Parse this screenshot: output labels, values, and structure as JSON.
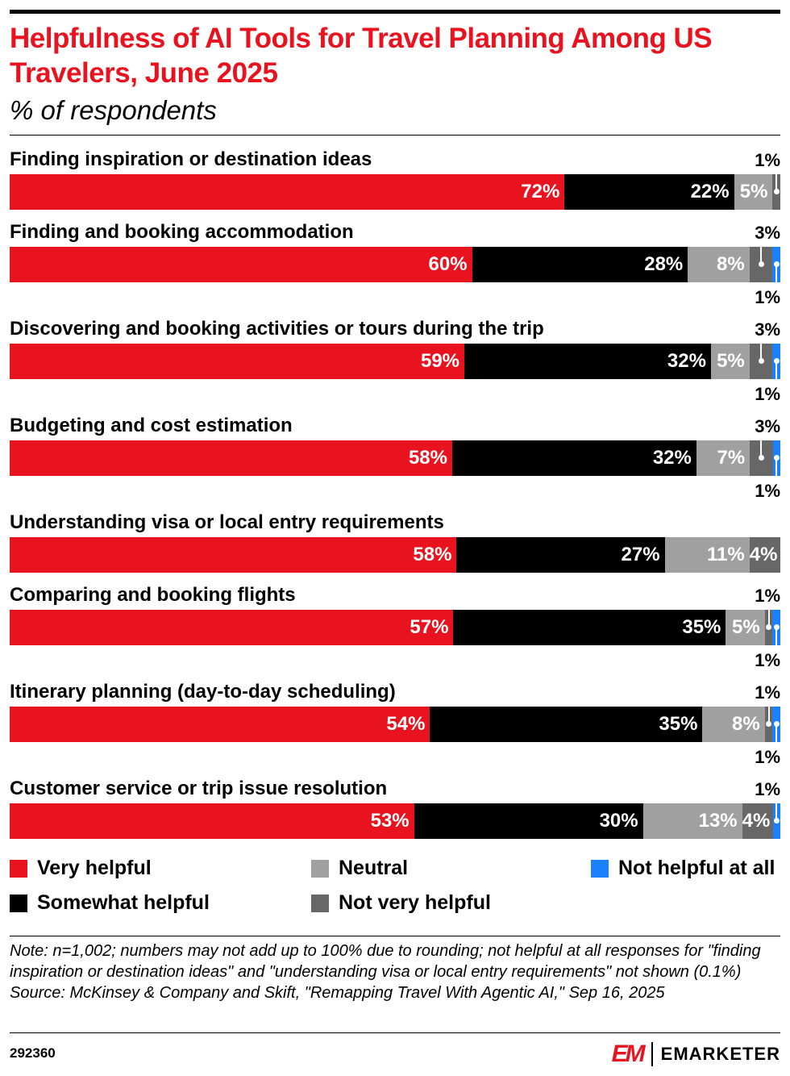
{
  "header": {
    "title": "Helpfulness of AI Tools for Travel Planning Among US Travelers, June 2025",
    "subtitle": "% of respondents"
  },
  "chart_data": {
    "type": "bar",
    "orientation": "horizontal",
    "stacked": true,
    "categories": [
      "Finding inspiration or destination ideas",
      "Finding and booking accommodation",
      "Discovering and booking activities or tours during the trip",
      "Budgeting and cost estimation",
      "Understanding visa or local entry requirements",
      "Comparing and booking flights",
      "Itinerary planning (day-to-day scheduling)",
      "Customer service or trip issue resolution"
    ],
    "series": [
      {
        "name": "Very helpful",
        "color": "#e8131f",
        "values": [
          72,
          60,
          59,
          58,
          58,
          57,
          54,
          53
        ]
      },
      {
        "name": "Somewhat helpful",
        "color": "#000000",
        "values": [
          22,
          28,
          32,
          32,
          27,
          35,
          35,
          30
        ]
      },
      {
        "name": "Neutral",
        "color": "#a0a0a0",
        "values": [
          5,
          8,
          5,
          7,
          11,
          5,
          8,
          13
        ]
      },
      {
        "name": "Not very helpful",
        "color": "#676767",
        "values": [
          1,
          3,
          3,
          3,
          4,
          1,
          1,
          4
        ]
      },
      {
        "name": "Not helpful at all",
        "color": "#1982fa",
        "values": [
          null,
          1,
          1,
          1,
          null,
          1,
          1,
          1
        ]
      }
    ],
    "value_suffix": "%",
    "legend_position": "bottom",
    "grid": false
  },
  "legend": [
    {
      "label": "Very helpful",
      "color": "#e8131f"
    },
    {
      "label": "Neutral",
      "color": "#a0a0a0"
    },
    {
      "label": "Not helpful at all",
      "color": "#1982fa"
    },
    {
      "label": "Somewhat helpful",
      "color": "#000000"
    },
    {
      "label": "Not very helpful",
      "color": "#676767"
    }
  ],
  "footer": {
    "note": "Note: n=1,002; numbers may not add up to 100% due to rounding; not helpful at all responses for \"finding inspiration or destination ideas\" and \"understanding visa or local entry requirements\" not shown (0.1%)",
    "source": "Source: McKinsey & Company and Skift, \"Remapping Travel With Agentic AI,\" Sep 16, 2025",
    "chart_id": "292360",
    "brand": "EMARKETER",
    "brand_mark": "EM"
  }
}
